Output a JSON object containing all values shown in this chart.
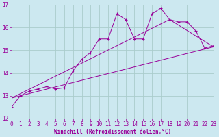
{
  "xlabel": "Windchill (Refroidissement éolien,°C)",
  "bg_color": "#cce8f0",
  "grid_color": "#aacccc",
  "line_color": "#990099",
  "xmin": 0,
  "xmax": 23,
  "ymin": 12,
  "ymax": 17,
  "series1_x": [
    0,
    1,
    2,
    3,
    4,
    5,
    6,
    7,
    8,
    9,
    10,
    11,
    12,
    13,
    14,
    15,
    16,
    17,
    18,
    19,
    20,
    21,
    22,
    23
  ],
  "series1_y": [
    12.5,
    13.0,
    13.2,
    13.3,
    13.4,
    13.3,
    13.35,
    14.1,
    14.6,
    14.9,
    15.5,
    15.5,
    16.6,
    16.35,
    15.5,
    15.5,
    16.6,
    16.85,
    16.35,
    16.25,
    16.25,
    15.85,
    15.1,
    15.2
  ],
  "series2_x": [
    0,
    23
  ],
  "series2_y": [
    12.9,
    15.15
  ],
  "series3_x": [
    0,
    18,
    23
  ],
  "series3_y": [
    12.9,
    16.35,
    15.15
  ],
  "yticks": [
    12,
    13,
    14,
    15,
    16,
    17
  ],
  "xticks": [
    0,
    1,
    2,
    3,
    4,
    5,
    6,
    7,
    8,
    9,
    10,
    11,
    12,
    13,
    14,
    15,
    16,
    17,
    18,
    19,
    20,
    21,
    22,
    23
  ],
  "tick_fontsize": 5.5,
  "xlabel_fontsize": 5.5
}
